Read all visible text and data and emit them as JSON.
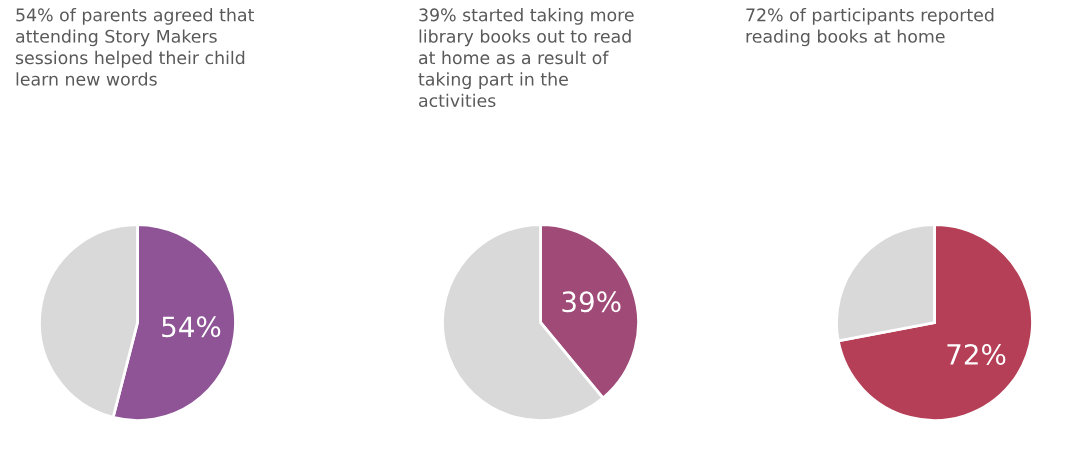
{
  "chart_data": [
    {
      "type": "pie",
      "title": "54% of parents agreed that\nattending Story Makers\nsessions helped their child\nlearn new words",
      "categories": [
        null,
        null
      ],
      "values": [
        54,
        46
      ],
      "colors": [
        "#8e5496",
        "#d9d9d9"
      ],
      "value_labels": [
        "54%",
        null
      ]
    },
    {
      "type": "pie",
      "title": "39% started taking more\nlibrary books out to read\nat home as a result of\ntaking part in the\nactivities",
      "categories": [
        null,
        null
      ],
      "values": [
        39,
        61
      ],
      "colors": [
        "#a04a78",
        "#d9d9d9"
      ],
      "value_labels": [
        "39%",
        null
      ]
    },
    {
      "type": "pie",
      "title": "72% of participants reported\nreading books at home",
      "categories": [
        null,
        null
      ],
      "values": [
        72,
        28
      ],
      "colors": [
        "#b53f56",
        "#d9d9d9"
      ],
      "value_labels": [
        "72%",
        null
      ]
    }
  ]
}
